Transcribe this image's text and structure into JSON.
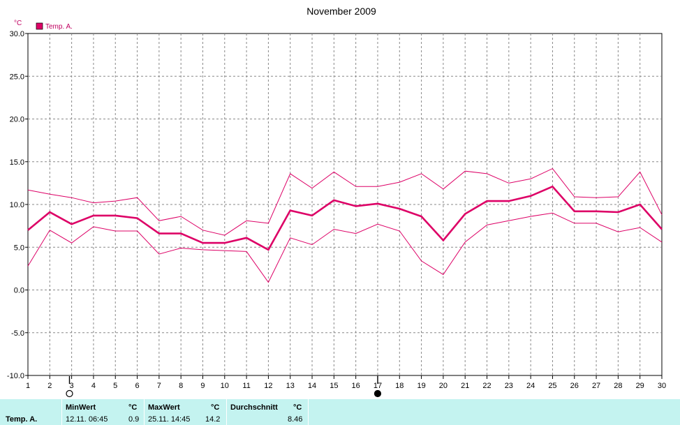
{
  "chart_data": {
    "type": "line",
    "title": "November 2009",
    "ylabel": "°C",
    "ylim": [
      -10,
      30
    ],
    "y_ticks": [
      "-10.0",
      "-5.0",
      "0.0",
      "5.0",
      "10.0",
      "15.0",
      "20.0",
      "25.0",
      "30.0"
    ],
    "x": [
      1,
      2,
      3,
      4,
      5,
      6,
      7,
      8,
      9,
      10,
      11,
      12,
      13,
      14,
      15,
      16,
      17,
      18,
      19,
      20,
      21,
      22,
      23,
      24,
      25,
      26,
      27,
      28,
      29,
      30
    ],
    "xlim": [
      1,
      30
    ],
    "grid": true,
    "legend": {
      "placement": "top-left",
      "entries": [
        "Temp. A."
      ]
    },
    "series": [
      {
        "name": "Temp. A.",
        "role": "average",
        "color": "#dd0066",
        "values": [
          7.0,
          9.1,
          7.7,
          8.7,
          8.7,
          8.4,
          6.6,
          6.6,
          5.5,
          5.5,
          6.1,
          4.7,
          9.3,
          8.7,
          10.5,
          9.8,
          10.1,
          9.5,
          8.6,
          5.8,
          8.9,
          10.4,
          10.4,
          11.0,
          12.1,
          9.2,
          9.2,
          9.1,
          10.0,
          7.1
        ]
      },
      {
        "role": "max",
        "color": "#dd0066",
        "values": [
          11.7,
          11.2,
          10.8,
          10.2,
          10.4,
          10.8,
          8.1,
          8.6,
          7.0,
          6.4,
          8.1,
          7.8,
          13.6,
          11.9,
          13.8,
          12.1,
          12.1,
          12.6,
          13.6,
          11.8,
          13.9,
          13.6,
          12.5,
          13.0,
          14.2,
          10.9,
          10.8,
          10.9,
          13.8,
          8.8
        ]
      },
      {
        "role": "min",
        "color": "#dd0066",
        "values": [
          2.8,
          7.0,
          5.5,
          7.4,
          6.9,
          6.9,
          4.2,
          4.9,
          4.7,
          4.6,
          4.5,
          0.9,
          6.1,
          5.3,
          7.1,
          6.6,
          7.7,
          6.9,
          3.4,
          1.8,
          5.6,
          7.6,
          8.1,
          8.6,
          9.0,
          7.8,
          7.8,
          6.8,
          7.3,
          5.6
        ]
      }
    ],
    "moon_markers": [
      {
        "day": 2.9,
        "phase": "new-moon-outline"
      },
      {
        "day": 17,
        "phase": "full-moon-filled"
      }
    ]
  },
  "stats": {
    "series_name": "Temp. A.",
    "min_label": "MinWert",
    "min_unit": "°C",
    "min_time": "12.11.  06:45",
    "min_value": "0.9",
    "max_label": "MaxWert",
    "max_unit": "°C",
    "max_time": "25.11.  14:45",
    "max_value": "14.2",
    "avg_label": "Durchschnitt",
    "avg_unit": "°C",
    "avg_value": "8.46"
  }
}
